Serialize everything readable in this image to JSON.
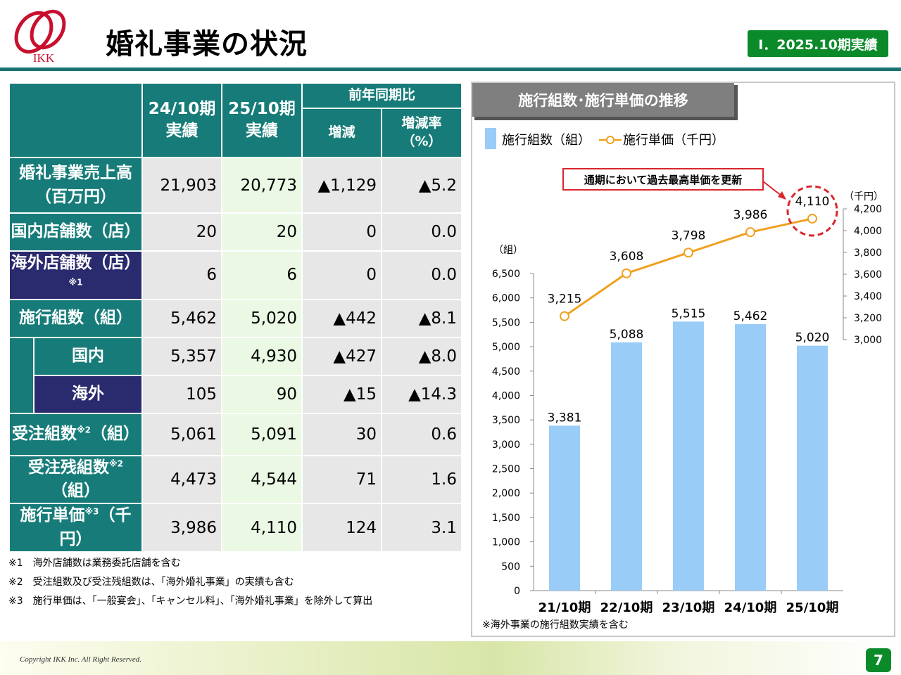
{
  "header": {
    "logo_text": "IKK",
    "title": "婚礼事業の状況",
    "badge": "Ⅰ．2025.10期実績"
  },
  "table": {
    "col_headers": {
      "prev": "24/10期\n実績",
      "curr": "25/10期\n実績",
      "yoy": "前年同期比",
      "diff": "増減",
      "rate": "増減率\n（%）"
    },
    "rows": [
      {
        "label": "婚礼事業売上高\n（百万円）",
        "v": [
          "21,903",
          "20,773",
          "▲1,129",
          "▲5.2"
        ]
      },
      {
        "label": "国内店舗数（店）",
        "v": [
          "20",
          "20",
          "0",
          "0.0"
        ]
      },
      {
        "label": "海外店舗数（店）",
        "sup": "※1",
        "v": [
          "6",
          "6",
          "0",
          "0.0"
        ]
      },
      {
        "label": "施行組数（組）",
        "v": [
          "5,462",
          "5,020",
          "▲442",
          "▲8.1"
        ]
      },
      {
        "label": "国内",
        "v": [
          "5,357",
          "4,930",
          "▲427",
          "▲8.0"
        ]
      },
      {
        "label": "海外",
        "v": [
          "105",
          "90",
          "▲15",
          "▲14.3"
        ]
      },
      {
        "label": "受注組数",
        "sup": "※2",
        "suffix": "（組）",
        "v": [
          "5,061",
          "5,091",
          "30",
          "0.6"
        ]
      },
      {
        "label": "受注残組数",
        "sup": "※2",
        "suffix": "（組）",
        "v": [
          "4,473",
          "4,544",
          "71",
          "1.6"
        ]
      },
      {
        "label": "施行単価",
        "sup": "※3",
        "suffix": "（千円）",
        "v": [
          "3,986",
          "4,110",
          "124",
          "3.1"
        ]
      }
    ]
  },
  "notes": [
    "※1　海外店舗数は業務委託店舗を含む",
    "※2　受注組数及び受注残組数は、「海外婚礼事業」の実績も含む",
    "※3　施行単価は、「一般宴会」、「キャンセル料」、「海外婚礼事業」を除外して算出"
  ],
  "chart_data": {
    "type": "bar",
    "title": "施行組数･施行単価の推移",
    "categories": [
      "21/10期",
      "22/10期",
      "23/10期",
      "24/10期",
      "25/10期"
    ],
    "series": [
      {
        "name": "施行組数（組）",
        "type": "bar",
        "values": [
          3381,
          5088,
          5515,
          5462,
          5020
        ],
        "labels": [
          "3,381",
          "5,088",
          "5,515",
          "5,462",
          "5,020"
        ],
        "color": "#99ccf7",
        "axis": "left"
      },
      {
        "name": "施行単価（千円）",
        "type": "line",
        "values": [
          3215,
          3608,
          3798,
          3986,
          4110
        ],
        "labels": [
          "3,215",
          "3,608",
          "3,798",
          "3,986",
          "4,110"
        ],
        "color": "#f0a020",
        "axis": "right"
      }
    ],
    "left_axis": {
      "label": "（組）",
      "ylim": [
        0,
        6500
      ],
      "ticks": [
        "0",
        "500",
        "1,000",
        "1,500",
        "2,000",
        "2,500",
        "3,000",
        "3,500",
        "4,000",
        "4,500",
        "5,000",
        "5,500",
        "6,000",
        "6,500"
      ]
    },
    "right_axis": {
      "label": "（千円）",
      "ylim": [
        3000,
        4200
      ],
      "ticks": [
        "3,000",
        "3,200",
        "3,400",
        "3,600",
        "3,800",
        "4,000",
        "4,200"
      ]
    },
    "annotation": "通期において過去最高単価を更新",
    "footnote": "※海外事業の施行組数実績を含む",
    "legend_position": "top-left"
  },
  "footer": {
    "copyright": "Copyright IKK Inc. All Right Reserved.",
    "page": "7"
  },
  "colors": {
    "teal": "#177c79",
    "navy": "#2a2a6e",
    "green": "#0b8a2a",
    "bar": "#99ccf7",
    "line": "#f0a020"
  }
}
